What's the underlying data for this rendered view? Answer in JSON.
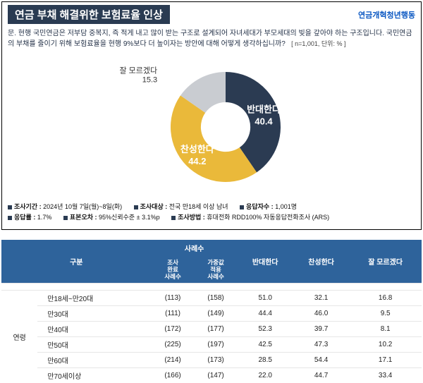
{
  "header": {
    "title": "연금 부채 해결위한 보험료율 인상",
    "org": "연금개혁청년행동"
  },
  "question": "문. 현행 국민연금은 저부담 중복지, 즉 적게 내고 많이 받는 구조로 설계되어 자녀세대가 부모세대의 빚을 갚아야 하는 구조입니다. 국민연금의 부채를 줄이기 위해 보험료율을 현행 9%보다 더 높이자는 방안에 대해 어떻게 생각하십니까?",
  "sample_note": "[ n=1,001, 단위: % ]",
  "chart": {
    "type": "donut",
    "inner_ratio": 0.45,
    "background_color": "#ffffff",
    "slices": [
      {
        "label": "반대한다",
        "value": 40.4,
        "color": "#2b3b52",
        "label_color": "#ffffff"
      },
      {
        "label": "찬성한다",
        "value": 44.2,
        "color": "#eab93a",
        "label_color": "#ffffff"
      },
      {
        "label": "잘 모르겠다",
        "value": 15.3,
        "color": "#c9ccd1",
        "label_color": "#444444",
        "external": true
      }
    ]
  },
  "meta": {
    "period_label": "조사기간 :",
    "period": "2024년 10월 7일(월)~8일(화)",
    "target_label": "조사대상 :",
    "target": "전국 만18세 이상 남녀",
    "count_label": "응답자수 :",
    "count": "1,001명",
    "rr_label": "응답률 :",
    "rr": "1.7%",
    "err_label": "표본오차 :",
    "err": "95%신뢰수준 ± 3.1%p",
    "method_label": "조사방법 :",
    "method": "휴대전화 RDD100% 자동응답전화조사 (ARS)"
  },
  "table": {
    "headers": {
      "group": "구분",
      "cases_top": "사례수",
      "cases_sub1": "조사\n완료\n사례수",
      "cases_sub2": "가중값\n적용\n사례수",
      "c1": "반대한다",
      "c2": "찬성한다",
      "c3": "잘 모르겠다"
    },
    "category_label": "연령",
    "rows": [
      {
        "age": "만18세~만20대",
        "n1": "(113)",
        "n2": "(158)",
        "v1": "51.0",
        "v2": "32.1",
        "v3": "16.8"
      },
      {
        "age": "만30대",
        "n1": "(111)",
        "n2": "(149)",
        "v1": "44.4",
        "v2": "46.0",
        "v3": "9.5"
      },
      {
        "age": "만40대",
        "n1": "(172)",
        "n2": "(177)",
        "v1": "52.3",
        "v2": "39.7",
        "v3": "8.1"
      },
      {
        "age": "만50대",
        "n1": "(225)",
        "n2": "(197)",
        "v1": "42.5",
        "v2": "47.3",
        "v3": "10.2"
      },
      {
        "age": "만60대",
        "n1": "(214)",
        "n2": "(173)",
        "v1": "28.5",
        "v2": "54.4",
        "v3": "17.1"
      },
      {
        "age": "만70세이상",
        "n1": "(166)",
        "n2": "(147)",
        "v1": "22.0",
        "v2": "44.7",
        "v3": "33.4"
      }
    ]
  }
}
